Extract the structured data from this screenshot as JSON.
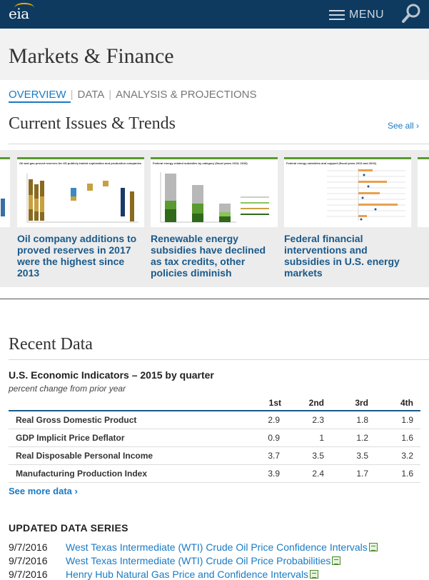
{
  "header": {
    "logo_text": "eia",
    "menu_label": "MENU"
  },
  "page": {
    "title": "Markets & Finance",
    "tabs": [
      {
        "label": "OVERVIEW",
        "active": true
      },
      {
        "label": "DATA",
        "active": false
      },
      {
        "label": "ANALYSIS & PROJECTIONS",
        "active": false
      }
    ]
  },
  "trends": {
    "title": "Current Issues & Trends",
    "see_all": "See all ›",
    "cards": [
      {
        "title": ""
      },
      {
        "title": "Oil company additions to proved reserves in 2017 were the highest since 2013",
        "thumb_caption": "Oil and gas proved reserves for US publicly traded exploration and production companies"
      },
      {
        "title": "Renewable energy subsidies have declined as tax credits, other policies diminish",
        "thumb_caption": "Federal energy-related subsidies by category (fiscal years 2013, 2016)"
      },
      {
        "title": "Federal financial interventions and subsidies in U.S. energy markets",
        "thumb_caption": "Federal energy subsidies and support (fiscal years 2013 and 2016)"
      },
      {
        "title": ""
      }
    ]
  },
  "recent_data": {
    "title": "Recent Data",
    "indicators": {
      "title": "U.S. Economic Indicators – 2015 by quarter",
      "subtitle": "percent change from prior year",
      "columns": [
        "1st",
        "2nd",
        "3rd",
        "4th"
      ],
      "rows": [
        {
          "label": "Real Gross Domestic Product",
          "values": [
            "2.9",
            "2.3",
            "1.8",
            "1.9"
          ]
        },
        {
          "label": "GDP Implicit Price Deflator",
          "values": [
            "0.9",
            "1",
            "1.2",
            "1.6"
          ]
        },
        {
          "label": "Real Disposable Personal Income",
          "values": [
            "3.7",
            "3.5",
            "3.5",
            "3.2"
          ]
        },
        {
          "label": "Manufacturing Production Index",
          "values": [
            "3.9",
            "2.4",
            "1.7",
            "1.6"
          ]
        }
      ]
    },
    "see_more": "See more data ›"
  },
  "updated_series": {
    "title": "UPDATED DATA SERIES",
    "items": [
      {
        "date": "9/7/2016",
        "label": "West Texas Intermediate (WTI) Crude Oil Price Confidence Intervals"
      },
      {
        "date": "9/7/2016",
        "label": "West Texas Intermediate (WTI) Crude Oil Price Probabilities"
      },
      {
        "date": "9/7/2016",
        "label": "Henry Hub Natural Gas Price and Confidence Intervals"
      }
    ]
  }
}
